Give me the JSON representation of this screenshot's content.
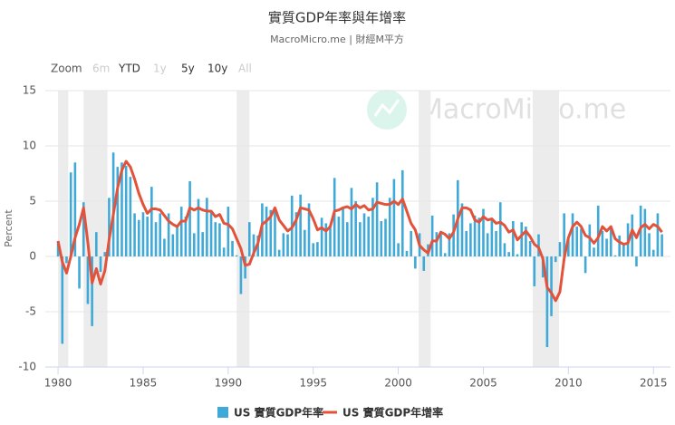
{
  "chart_data": {
    "type": "bar",
    "title": "實質GDP年率與年增率",
    "subtitle": "MacroMicro.me | 財經M平方",
    "watermark": "MacroMicro.me",
    "range_selector": {
      "label": "Zoom",
      "buttons": [
        {
          "text": "6m",
          "enabled": false
        },
        {
          "text": "YTD",
          "enabled": true
        },
        {
          "text": "1y",
          "enabled": false
        },
        {
          "text": "5y",
          "enabled": true
        },
        {
          "text": "10y",
          "enabled": true
        },
        {
          "text": "All",
          "enabled": false
        }
      ]
    },
    "y_label": "Percent",
    "xlim": [
      1979.25,
      2016
    ],
    "xticks": [
      1980,
      1985,
      1990,
      1995,
      2000,
      2005,
      2010,
      2015
    ],
    "ylim": [
      -10,
      15
    ],
    "yticks": [
      -10,
      -5,
      0,
      5,
      10,
      15
    ],
    "grid": true,
    "recessions": [
      [
        1980.0,
        1980.6
      ],
      [
        1981.5,
        1982.9
      ],
      [
        1990.5,
        1991.25
      ],
      [
        2001.2,
        2001.9
      ],
      [
        2007.9,
        2009.45
      ]
    ],
    "x": [
      1980,
      1980.25,
      1980.5,
      1980.75,
      1981,
      1981.25,
      1981.5,
      1981.75,
      1982,
      1982.25,
      1982.5,
      1982.75,
      1983,
      1983.25,
      1983.5,
      1983.75,
      1984,
      1984.25,
      1984.5,
      1984.75,
      1985,
      1985.25,
      1985.5,
      1985.75,
      1986,
      1986.25,
      1986.5,
      1986.75,
      1987,
      1987.25,
      1987.5,
      1987.75,
      1988,
      1988.25,
      1988.5,
      1988.75,
      1989,
      1989.25,
      1989.5,
      1989.75,
      1990,
      1990.25,
      1990.5,
      1990.75,
      1991,
      1991.25,
      1991.5,
      1991.75,
      1992,
      1992.25,
      1992.5,
      1992.75,
      1993,
      1993.25,
      1993.5,
      1993.75,
      1994,
      1994.25,
      1994.5,
      1994.75,
      1995,
      1995.25,
      1995.5,
      1995.75,
      1996,
      1996.25,
      1996.5,
      1996.75,
      1997,
      1997.25,
      1997.5,
      1997.75,
      1998,
      1998.25,
      1998.5,
      1998.75,
      1999,
      1999.25,
      1999.5,
      1999.75,
      2000,
      2000.25,
      2000.5,
      2000.75,
      2001,
      2001.25,
      2001.5,
      2001.75,
      2002,
      2002.25,
      2002.5,
      2002.75,
      2003,
      2003.25,
      2003.5,
      2003.75,
      2004,
      2004.25,
      2004.5,
      2004.75,
      2005,
      2005.25,
      2005.5,
      2005.75,
      2006,
      2006.25,
      2006.5,
      2006.75,
      2007,
      2007.25,
      2007.5,
      2007.75,
      2008,
      2008.25,
      2008.5,
      2008.75,
      2009,
      2009.25,
      2009.5,
      2009.75,
      2010,
      2010.25,
      2010.5,
      2010.75,
      2011,
      2011.25,
      2011.5,
      2011.75,
      2012,
      2012.25,
      2012.5,
      2012.75,
      2013,
      2013.25,
      2013.5,
      2013.75,
      2014,
      2014.25,
      2014.5,
      2014.75,
      2015,
      2015.25,
      2015.5
    ],
    "series": [
      {
        "name": "US 實質GDP年率",
        "type": "bar",
        "color": "#3fa9d8",
        "values": [
          1.3,
          -7.9,
          -0.6,
          7.6,
          8.5,
          -2.9,
          4.9,
          -4.3,
          -6.3,
          2.2,
          -1.4,
          0.4,
          5.3,
          9.4,
          8.1,
          8.5,
          8.2,
          7.2,
          3.9,
          3.3,
          4.0,
          3.6,
          6.3,
          3.1,
          3.9,
          1.6,
          3.9,
          2.0,
          2.8,
          4.5,
          3.6,
          6.8,
          2.1,
          5.2,
          2.2,
          5.3,
          4.1,
          3.1,
          3.0,
          0.8,
          4.5,
          1.4,
          0.1,
          -3.4,
          -2.0,
          3.1,
          2.0,
          1.9,
          4.8,
          4.5,
          4.2,
          4.4,
          0.6,
          2.1,
          2.0,
          5.5,
          4.0,
          5.6,
          2.4,
          4.8,
          1.2,
          1.3,
          3.5,
          3.0,
          2.7,
          7.1,
          3.6,
          4.3,
          3.1,
          6.2,
          5.0,
          3.1,
          3.9,
          3.6,
          5.3,
          6.7,
          3.2,
          3.4,
          5.3,
          7.0,
          1.2,
          7.8,
          0.5,
          2.3,
          -1.1,
          2.1,
          -1.3,
          1.1,
          3.7,
          2.2,
          2.0,
          0.3,
          2.1,
          3.8,
          6.9,
          4.8,
          2.3,
          3.0,
          3.7,
          3.5,
          4.3,
          2.1,
          3.4,
          2.3,
          4.9,
          1.2,
          0.4,
          3.2,
          0.2,
          3.1,
          2.7,
          1.4,
          -2.7,
          2.0,
          -1.9,
          -8.2,
          -5.4,
          -0.5,
          1.3,
          3.9,
          1.7,
          3.9,
          2.7,
          2.5,
          -1.5,
          2.9,
          0.8,
          4.6,
          2.3,
          1.6,
          2.5,
          0.1,
          1.9,
          1.1,
          3.0,
          3.8,
          -0.9,
          4.6,
          4.3,
          2.1,
          0.6,
          3.9,
          2.0
        ]
      },
      {
        "name": "US 實質GDP年增率",
        "type": "line",
        "color": "#e2533c",
        "values": [
          1.4,
          -0.5,
          -1.5,
          0.0,
          1.7,
          2.9,
          4.4,
          1.3,
          -2.4,
          -1.1,
          -2.5,
          -1.3,
          1.5,
          3.8,
          6.2,
          7.8,
          8.6,
          8.1,
          7.0,
          5.7,
          4.7,
          3.9,
          4.3,
          4.3,
          4.2,
          3.7,
          3.2,
          2.9,
          2.7,
          3.2,
          3.2,
          4.4,
          4.2,
          4.4,
          4.2,
          4.1,
          4.1,
          3.6,
          3.8,
          3.0,
          2.9,
          2.5,
          1.6,
          0.7,
          -0.8,
          -0.7,
          0.3,
          1.2,
          2.9,
          3.2,
          3.6,
          4.4,
          3.3,
          2.8,
          2.3,
          2.6,
          3.3,
          4.4,
          4.3,
          4.2,
          3.4,
          2.4,
          2.6,
          2.3,
          2.7,
          4.1,
          4.2,
          4.4,
          4.5,
          4.3,
          4.7,
          4.4,
          4.6,
          4.2,
          4.3,
          4.9,
          4.8,
          4.7,
          4.7,
          5.0,
          4.7,
          5.2,
          4.1,
          3.0,
          2.4,
          1.0,
          0.6,
          0.3,
          1.4,
          1.4,
          2.2,
          2.0,
          1.6,
          2.2,
          3.4,
          4.4,
          4.4,
          4.2,
          3.3,
          3.1,
          3.6,
          3.3,
          3.4,
          3.0,
          3.1,
          2.8,
          2.2,
          2.4,
          1.5,
          1.9,
          2.3,
          1.8,
          1.1,
          0.8,
          -0.2,
          -2.8,
          -3.3,
          -4.0,
          -3.2,
          -0.2,
          1.7,
          2.7,
          3.1,
          2.7,
          1.9,
          1.7,
          1.2,
          1.7,
          2.7,
          2.3,
          2.7,
          1.6,
          1.3,
          1.1,
          1.2,
          2.4,
          1.7,
          2.6,
          2.9,
          2.5,
          2.9,
          2.7,
          2.2
        ]
      }
    ]
  }
}
